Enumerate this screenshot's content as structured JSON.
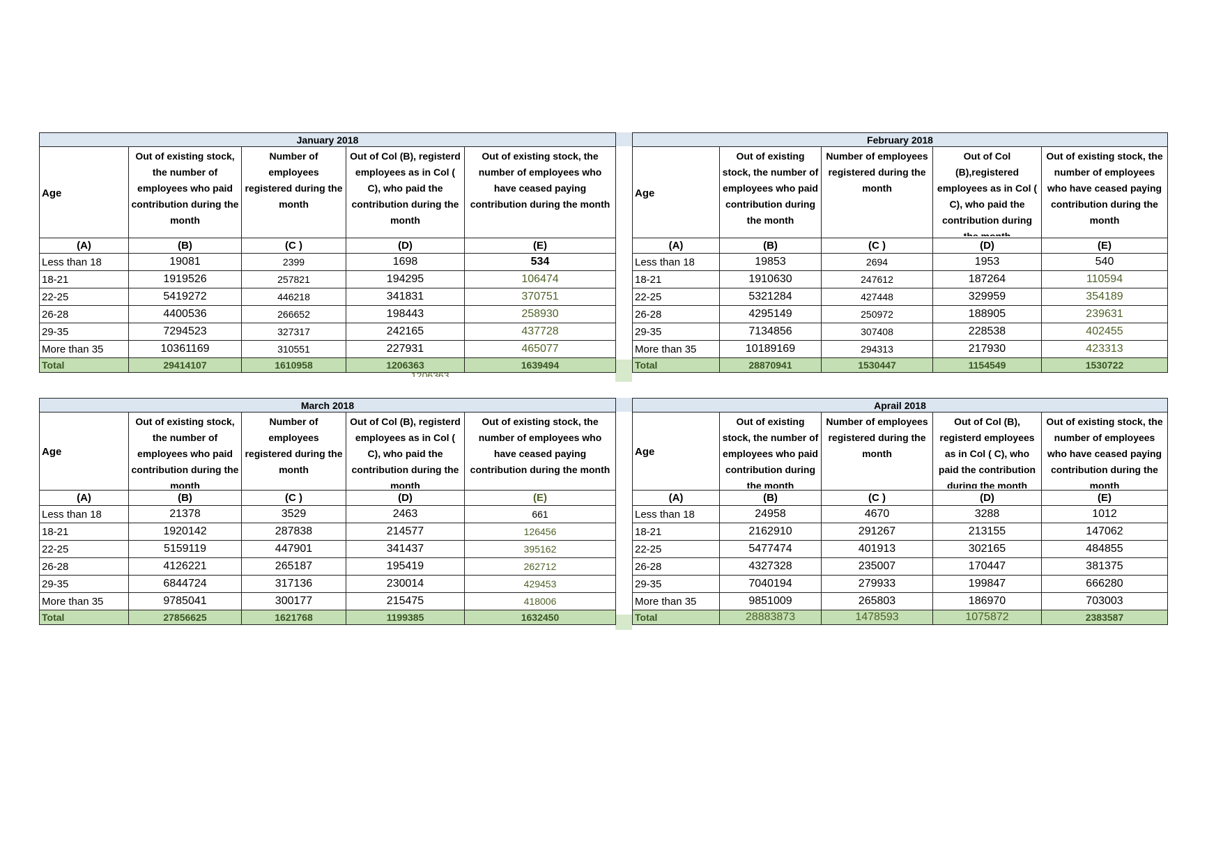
{
  "column_letters": [
    "(A)",
    "(B)",
    "(C )",
    "(D)",
    "(E)"
  ],
  "colors": {
    "title_bg": "#dce6f1",
    "total_bg": "#c4dfb4",
    "green_text": "#4f6228",
    "total_text": "#375623"
  },
  "tables": [
    {
      "title": "January 2018",
      "headers": [
        "Age",
        "Out of existing stock, the number of employees who paid contribution during the month",
        "Number of employees registered during the month",
        "Out of Col (B), registerd employees as in Col ( C), who paid the contribution during the month",
        "Out of existing stock, the number of  employees  who have ceased paying contribution during the month"
      ],
      "rows": [
        [
          "Less than 18",
          "19081",
          "2399",
          "1698",
          "534"
        ],
        [
          "18-21",
          "1919526",
          "257821",
          "194295",
          "106474"
        ],
        [
          "22-25",
          "5419272",
          "446218",
          "341831",
          "370751"
        ],
        [
          "26-28",
          "4400536",
          "266652",
          "198443",
          "258930"
        ],
        [
          "29-35",
          "7294523",
          "327317",
          "242165",
          "437728"
        ],
        [
          "More than 35",
          "10361169",
          "310551",
          "227931",
          "465077"
        ]
      ],
      "total": [
        "Total",
        "29414107",
        "1610958",
        "1206363",
        "1639494"
      ]
    },
    {
      "title": "February 2018",
      "headers": [
        "Age",
        "Out of existing stock, the number of employees who paid contribution during the month",
        "Number of employees registered during the month",
        "Out of Col (B),registered employees as in Col ( C), who paid the contribution during the month",
        "Out of existing stock, the number of  employees  who have ceased paying contribution during the month"
      ],
      "rows": [
        [
          "Less than 18",
          "19853",
          "2694",
          "1953",
          "540"
        ],
        [
          "18-21",
          "1910630",
          "247612",
          "187264",
          "110594"
        ],
        [
          "22-25",
          "5321284",
          "427448",
          "329959",
          "354189"
        ],
        [
          "26-28",
          "4295149",
          "250972",
          "188905",
          "239631"
        ],
        [
          "29-35",
          "7134856",
          "307408",
          "228538",
          "402455"
        ],
        [
          "More than 35",
          "10189169",
          "294313",
          "217930",
          "423313"
        ]
      ],
      "total": [
        "Total",
        "28870941",
        "1530447",
        "1154549",
        "1530722"
      ]
    },
    {
      "title": "March 2018",
      "headers": [
        "Age",
        "Out of existing stock, the number of employees who paid contribution during the month",
        "Number of employees registered during the month",
        "Out of Col (B), registerd employees as in Col ( C), who paid the contribution during the month",
        "Out of existing stock, the number of  employees  who have ceased paying contribution during the month"
      ],
      "rows": [
        [
          "Less than 18",
          "21378",
          "3529",
          "2463",
          "661"
        ],
        [
          "18-21",
          "1920142",
          "287838",
          "214577",
          "126456"
        ],
        [
          "22-25",
          "5159119",
          "447901",
          "341437",
          "395162"
        ],
        [
          "26-28",
          "4126221",
          "265187",
          "195419",
          "262712"
        ],
        [
          "29-35",
          "6844724",
          "317136",
          "230014",
          "429453"
        ],
        [
          "More than 35",
          "9785041",
          "300177",
          "215475",
          "418006"
        ]
      ],
      "total": [
        "Total",
        "27856625",
        "1621768",
        "1199385",
        "1632450"
      ]
    },
    {
      "title": "Aprail 2018",
      "headers": [
        "Age",
        "Out of existing stock, the number of employees who paid contribution during the month",
        "Number of employees registered during the month",
        "Out of Col (B), registerd employees as in Col ( C), who paid the contribution during the month",
        "Out of existing stock, the number of  employees  who have ceased paying contribution during the month"
      ],
      "rows": [
        [
          "Less than 18",
          "24958",
          "4670",
          "3288",
          "1012"
        ],
        [
          "18-21",
          "2162910",
          "291267",
          "213155",
          "147062"
        ],
        [
          "22-25",
          "5477474",
          "401913",
          "302165",
          "484855"
        ],
        [
          "26-28",
          "4327328",
          "235007",
          "170447",
          "381375"
        ],
        [
          "29-35",
          "7040194",
          "279933",
          "199847",
          "666280"
        ],
        [
          "More than 35",
          "9851009",
          "265803",
          "186970",
          "703003"
        ]
      ],
      "total": [
        "Total",
        "28883873",
        "1478593",
        "1075872",
        "2383587"
      ]
    }
  ],
  "overflow_fragment": "1206363"
}
